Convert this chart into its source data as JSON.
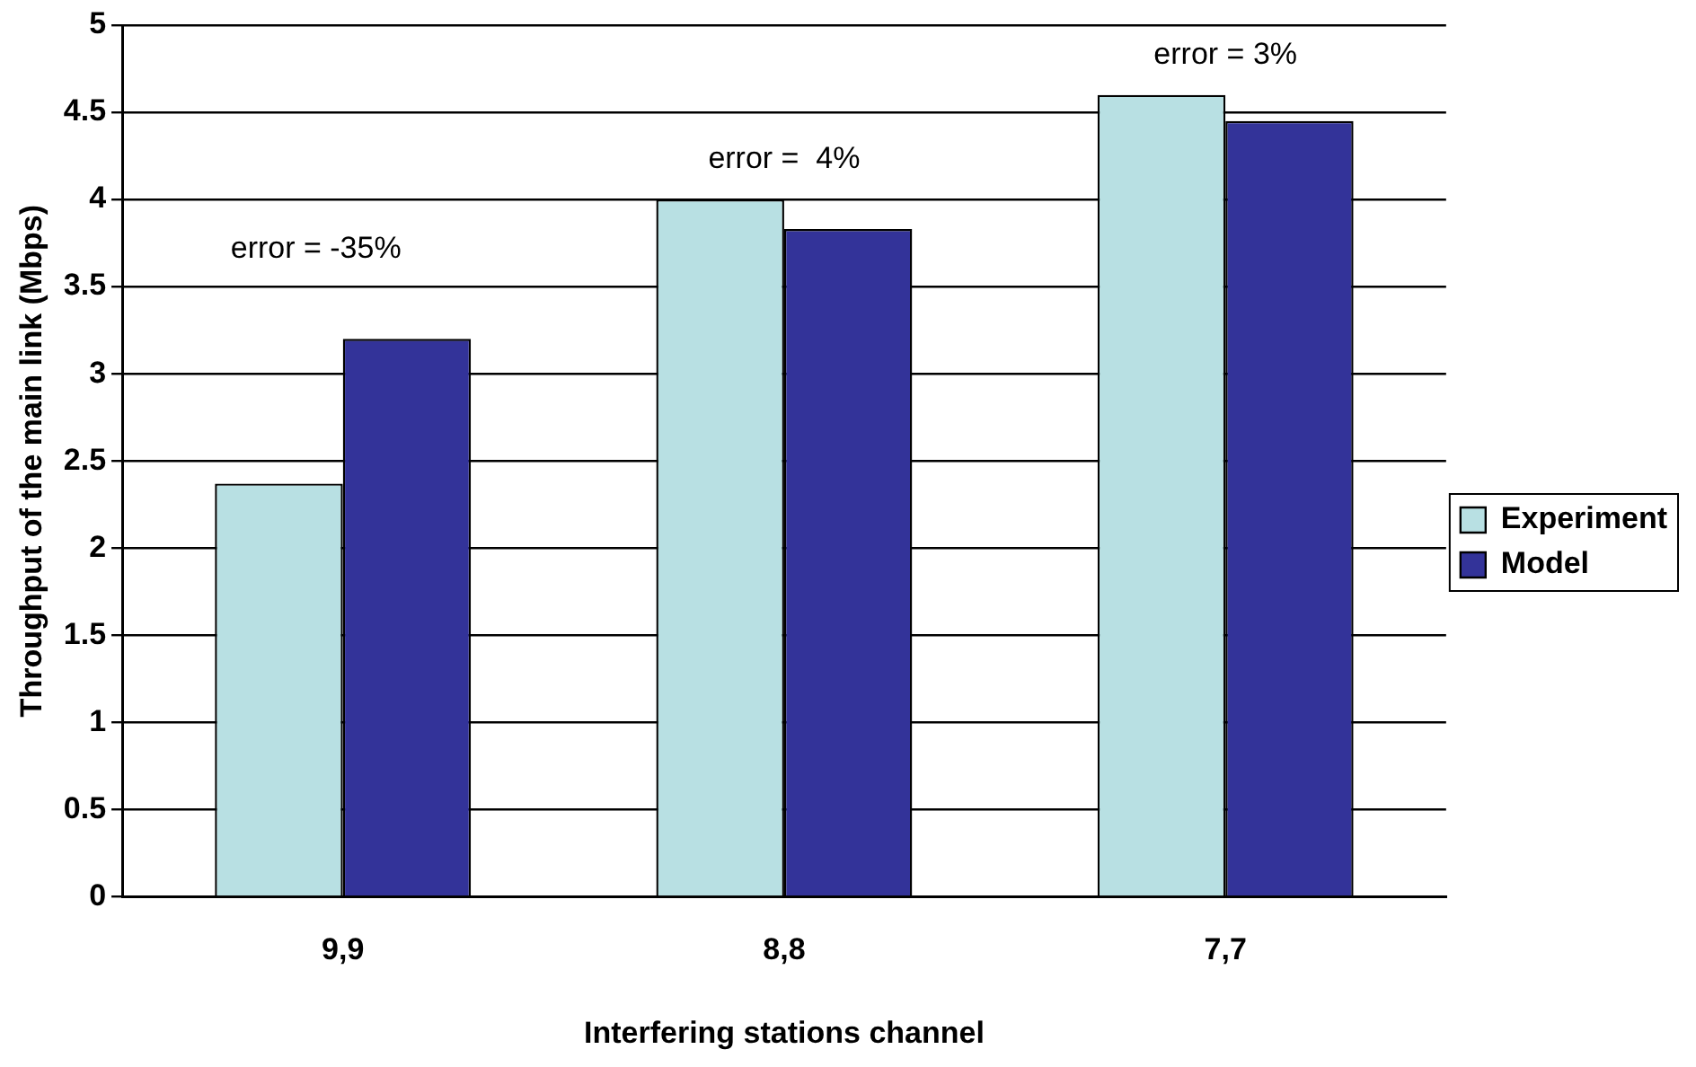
{
  "chart_data": {
    "type": "bar",
    "xlabel": "Interfering stations channel",
    "ylabel": "Throughput of the main link (Mbps)",
    "categories": [
      "9,9",
      "8,8",
      "7,7"
    ],
    "series": [
      {
        "name": "Experiment",
        "color": "#b8e0e3",
        "values": [
          2.37,
          4.0,
          4.6
        ]
      },
      {
        "name": "Model",
        "color": "#333399",
        "values": [
          3.2,
          3.83,
          4.45
        ]
      }
    ],
    "ylim": [
      0,
      5
    ],
    "yticks": [
      0,
      0.5,
      1,
      1.5,
      2,
      2.5,
      3,
      3.5,
      4,
      4.5,
      5
    ],
    "grid": "y",
    "legend": "right",
    "annotations": [
      "error = -35%",
      "error =  4%",
      "error = 3%"
    ]
  }
}
